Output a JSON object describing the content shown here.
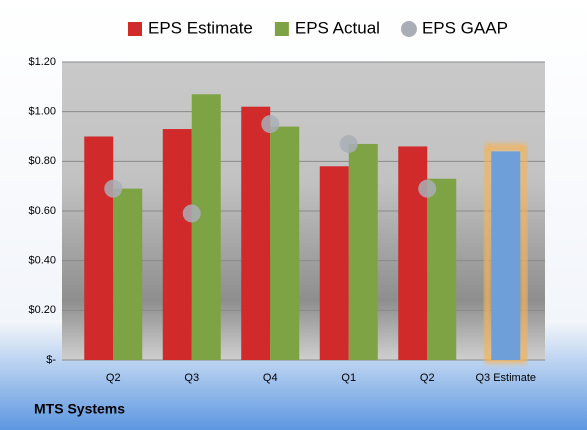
{
  "chart_data": {
    "type": "bar",
    "title": "MTS Systems",
    "categories": [
      "Q2",
      "Q3",
      "Q4",
      "Q1",
      "Q2",
      "Q3 Estimate"
    ],
    "series": [
      {
        "name": "EPS Estimate",
        "color": "#d02a2a",
        "values": [
          0.9,
          0.93,
          1.02,
          0.78,
          0.86,
          0.84
        ]
      },
      {
        "name": "EPS Actual",
        "color": "#7ea345",
        "values": [
          0.69,
          1.07,
          0.94,
          0.87,
          0.73,
          null
        ]
      },
      {
        "name": "EPS GAAP",
        "color": "#a9aeb6",
        "values": [
          0.69,
          0.59,
          0.95,
          0.87,
          0.69,
          null
        ],
        "marker": "circle"
      }
    ],
    "highlight_index": 5,
    "highlight_color": "#6f9fd8",
    "highlight_glow": "#f4b459",
    "ylim": [
      0,
      1.2
    ],
    "yticks": [
      {
        "value": 0,
        "label": "$-"
      },
      {
        "value": 0.2,
        "label": "$0.20"
      },
      {
        "value": 0.4,
        "label": "$0.40"
      },
      {
        "value": 0.6,
        "label": "$0.60"
      },
      {
        "value": 0.8,
        "label": "$0.80"
      },
      {
        "value": 1.0,
        "label": "$1.00"
      },
      {
        "value": 1.2,
        "label": "$1.20"
      }
    ],
    "grid": true
  }
}
